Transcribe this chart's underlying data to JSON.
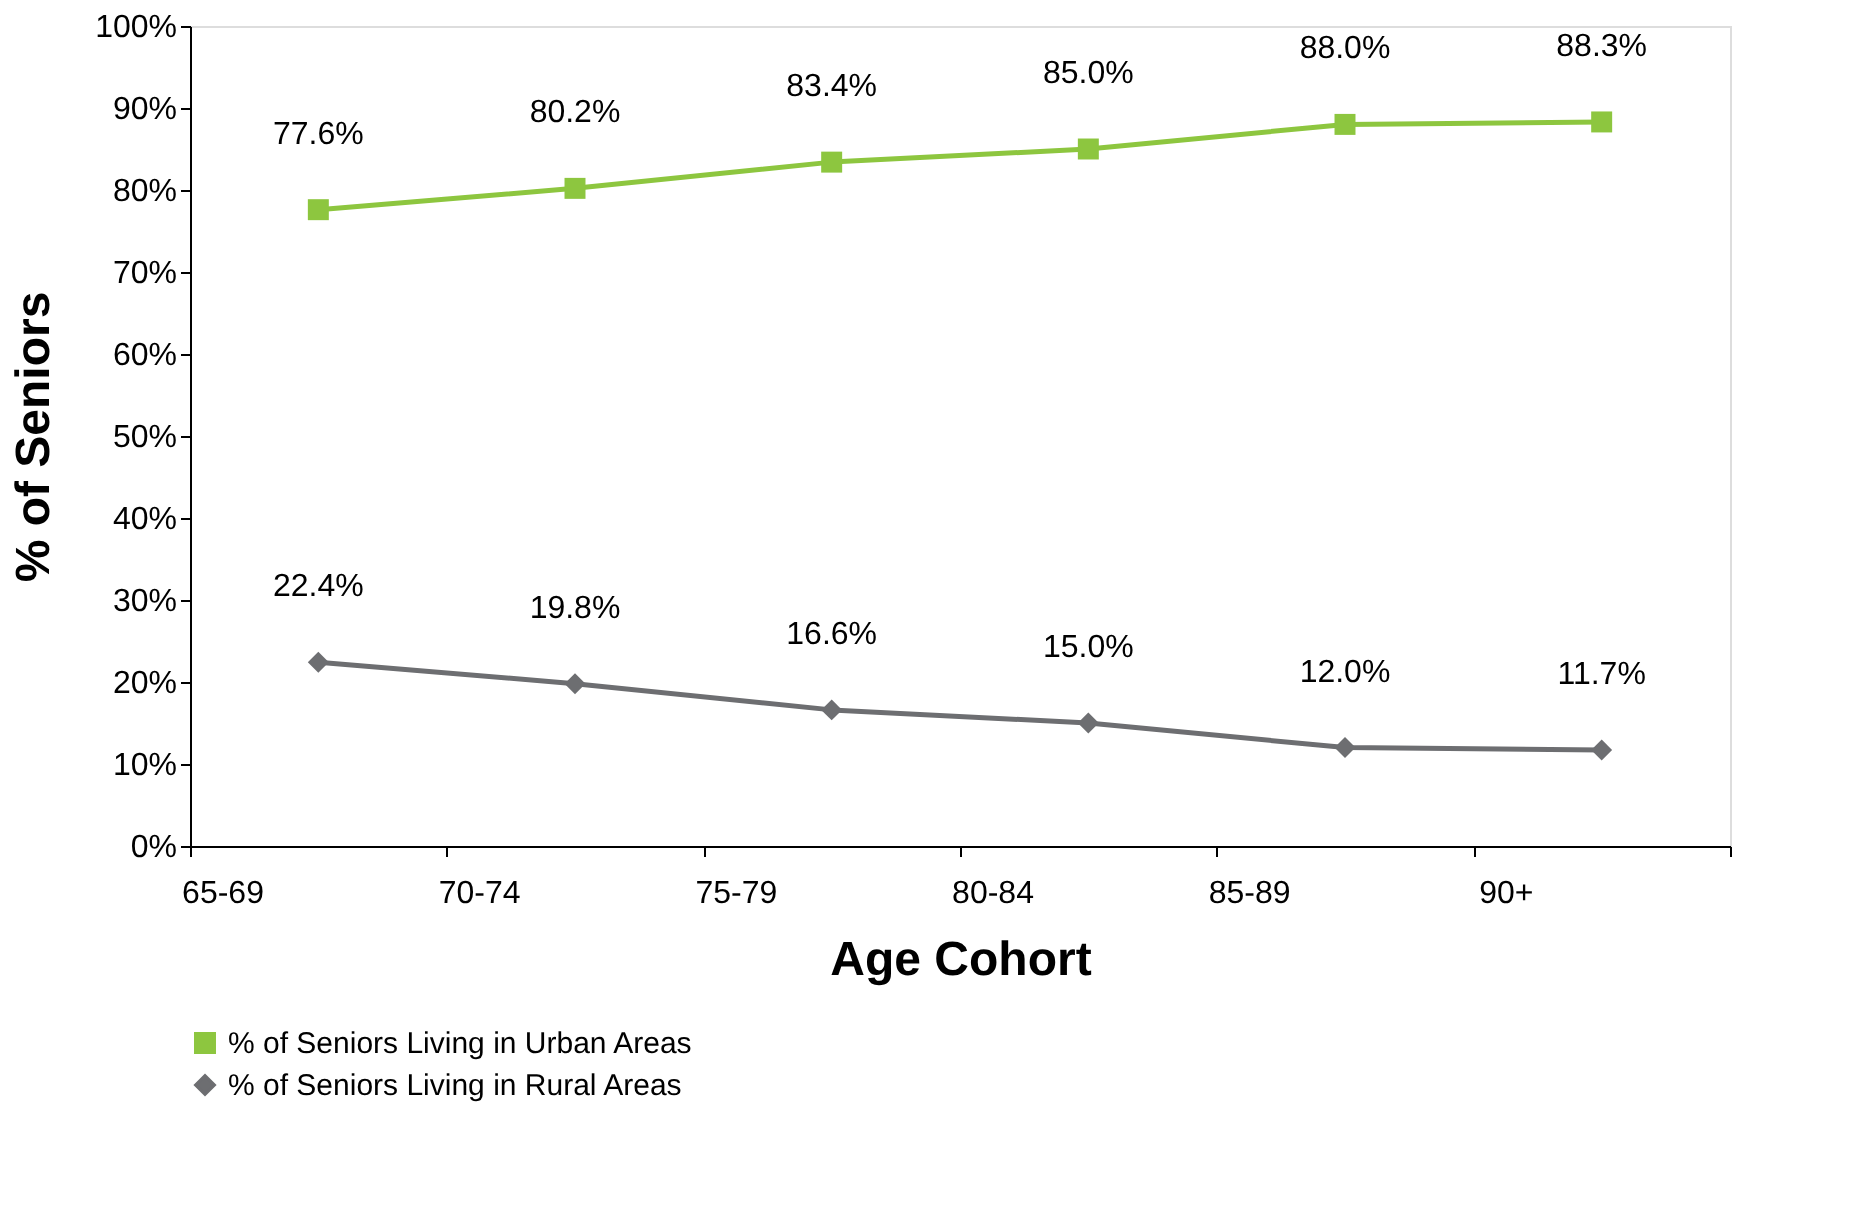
{
  "chart_data": {
    "type": "line",
    "xlabel": "Age Cohort",
    "ylabel": "% of Seniors",
    "categories": [
      "65-69",
      "70-74",
      "75-79",
      "80-84",
      "85-89",
      "90+"
    ],
    "series": [
      {
        "name": "% of Seniors Living in Urban Areas",
        "color": "#8dc63f",
        "marker": "square",
        "values": [
          77.6,
          80.2,
          83.4,
          85.0,
          88.0,
          88.3
        ],
        "value_labels": [
          "77.6%",
          "80.2%",
          "83.4%",
          "85.0%",
          "88.0%",
          "88.3%"
        ]
      },
      {
        "name": "% of Seniors Living in Rural Areas",
        "color": "#6d6e71",
        "marker": "diamond",
        "values": [
          22.4,
          19.8,
          16.6,
          15.0,
          12.0,
          11.7
        ],
        "value_labels": [
          "22.4%",
          "19.8%",
          "16.6%",
          "15.0%",
          "12.0%",
          "11.7%"
        ]
      }
    ],
    "ylim": [
      0,
      100
    ],
    "yticks": [
      {
        "value": 0,
        "label": "0%"
      },
      {
        "value": 10,
        "label": "10%"
      },
      {
        "value": 20,
        "label": "20%"
      },
      {
        "value": 30,
        "label": "30%"
      },
      {
        "value": 40,
        "label": "40%"
      },
      {
        "value": 50,
        "label": "50%"
      },
      {
        "value": 60,
        "label": "60%"
      },
      {
        "value": 70,
        "label": "70%"
      },
      {
        "value": 80,
        "label": "80%"
      },
      {
        "value": 90,
        "label": "90%"
      },
      {
        "value": 100,
        "label": "100%"
      }
    ],
    "grid": false,
    "legend": "bottom left",
    "line_style": "solid"
  }
}
